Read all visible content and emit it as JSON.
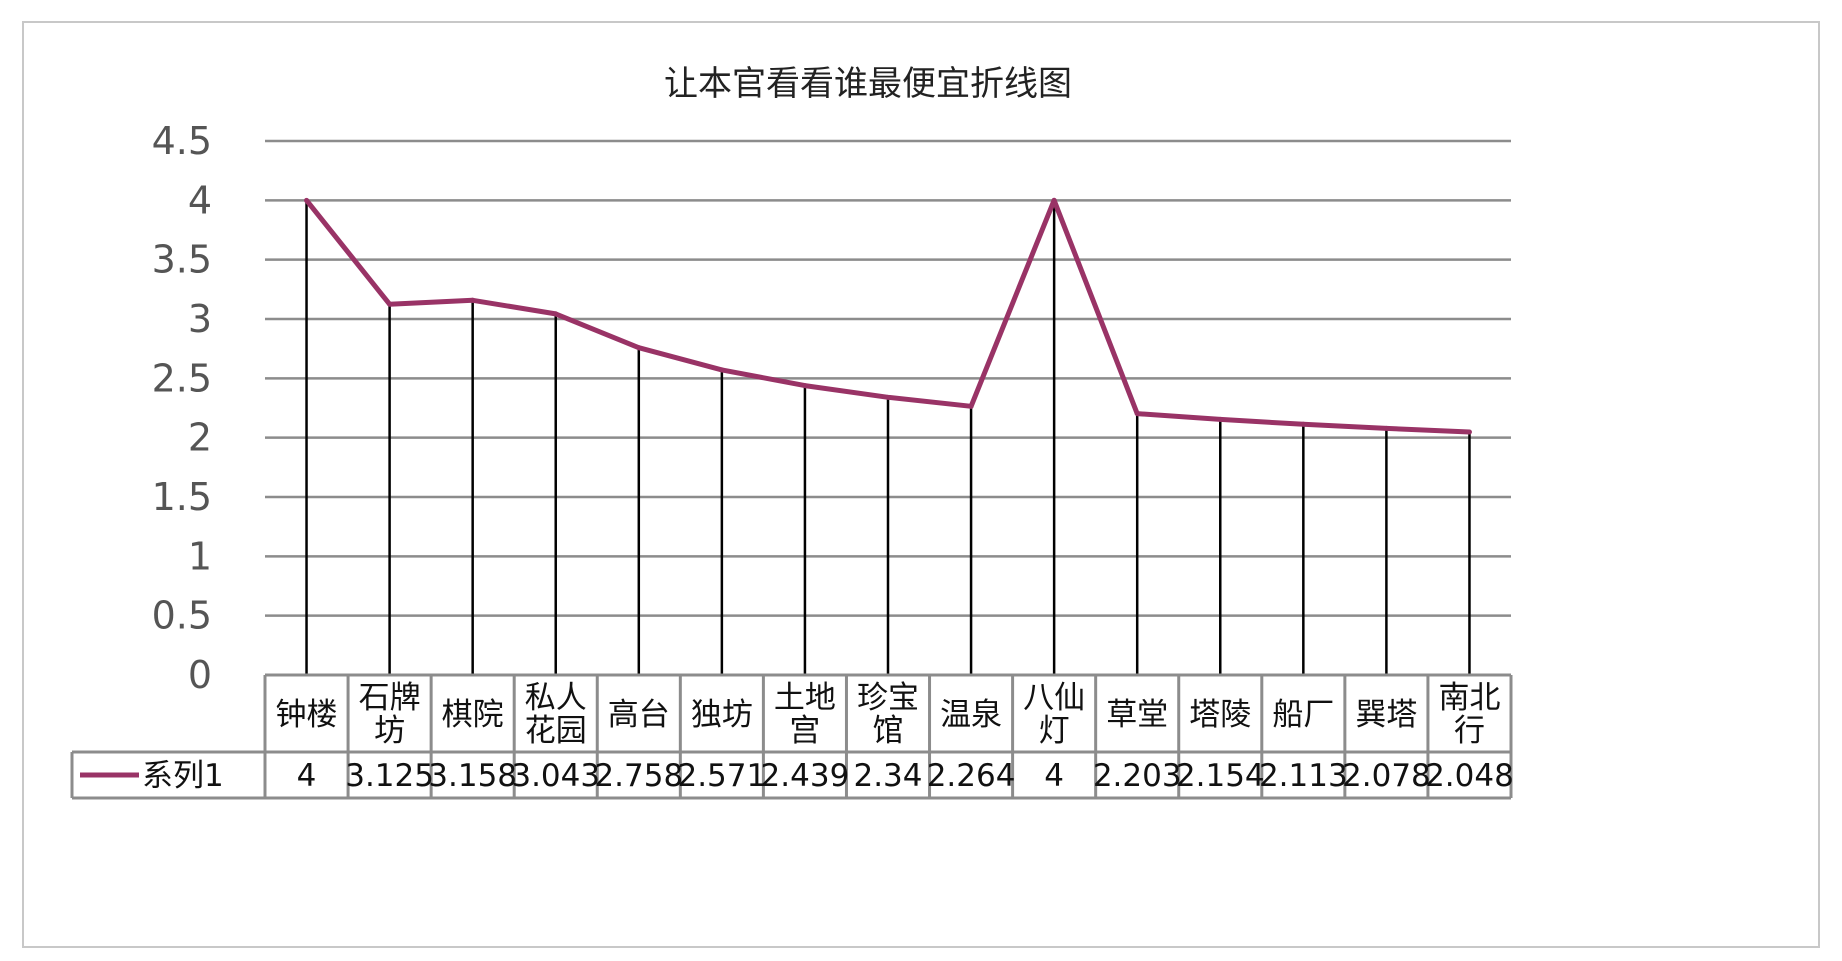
{
  "chart_data": {
    "type": "line",
    "title": "让本官看看谁最便宜折线图",
    "categories": [
      "钟楼",
      "石牌坊",
      "棋院",
      "私人花园",
      "高台",
      "独坊",
      "土地宫",
      "珍宝馆",
      "温泉",
      "八仙灯",
      "草堂",
      "塔陵",
      "船厂",
      "巽塔",
      "南北行"
    ],
    "category_lines": [
      [
        "钟楼"
      ],
      [
        "石牌",
        "坊"
      ],
      [
        "棋院"
      ],
      [
        "私人",
        "花园"
      ],
      [
        "高台"
      ],
      [
        "独坊"
      ],
      [
        "土地",
        "宫"
      ],
      [
        "珍宝",
        "馆"
      ],
      [
        "温泉"
      ],
      [
        "八仙",
        "灯"
      ],
      [
        "草堂"
      ],
      [
        "塔陵"
      ],
      [
        "船厂"
      ],
      [
        "巽塔"
      ],
      [
        "南北",
        "行"
      ]
    ],
    "series": [
      {
        "name": "系列1",
        "values": [
          4,
          3.125,
          3.158,
          3.043,
          2.758,
          2.571,
          2.439,
          2.34,
          2.264,
          4,
          2.203,
          2.154,
          2.113,
          2.078,
          2.048
        ],
        "labels": [
          "4",
          "3.125",
          "3.158",
          "3.043",
          "2.758",
          "2.571",
          "2.439",
          "2.34",
          "2.264",
          "4",
          "2.203",
          "2.154",
          "2.113",
          "2.078",
          "2.048"
        ]
      }
    ],
    "ylim": [
      0,
      4.5
    ],
    "yticks": [
      "0",
      "0.5",
      "1",
      "1.5",
      "2",
      "2.5",
      "3",
      "3.5",
      "4",
      "4.5"
    ],
    "drop_lines": true,
    "grid": true,
    "data_table": true,
    "colors": {
      "series": "#993366",
      "grid": "#8c8c8c",
      "drop": "#000000",
      "table": "#8c8c8c"
    }
  }
}
